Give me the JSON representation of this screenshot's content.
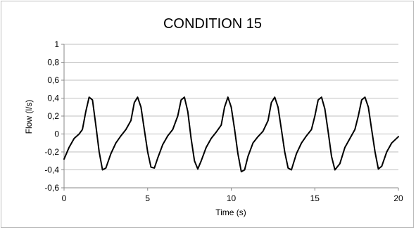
{
  "chart_data": {
    "type": "line",
    "title": "CONDITION 15",
    "xlabel": "Time (s)",
    "ylabel": "Flow (l/s)",
    "xlim": [
      0,
      20
    ],
    "ylim": [
      -0.6,
      1
    ],
    "x_ticks": [
      0,
      5,
      10,
      15,
      20
    ],
    "x_tick_labels": [
      "0",
      "5",
      "10",
      "15",
      "20"
    ],
    "y_ticks": [
      -0.6,
      -0.4,
      -0.2,
      0,
      0.2,
      0.4,
      0.6,
      0.8,
      1
    ],
    "y_tick_labels": [
      "-0,6",
      "-0,4",
      "-0,2",
      "0",
      "0,2",
      "0,4",
      "0,6",
      "0,8",
      "1"
    ],
    "grid": "horizontal",
    "colors": {
      "line": "#000000",
      "grid": "#bfbfbf",
      "axis": "#888888"
    },
    "series": [
      {
        "x": [
          0,
          0.3,
          0.6,
          0.9,
          1.1,
          1.3,
          1.5,
          1.7,
          1.9,
          2.1,
          2.3,
          2.5,
          2.8,
          3.1,
          3.4,
          3.7,
          4.0,
          4.2,
          4.4,
          4.6,
          4.8,
          5.0,
          5.2,
          5.4,
          5.6,
          5.9,
          6.2,
          6.5,
          6.8,
          7.0,
          7.2,
          7.4,
          7.6,
          7.8,
          8.0,
          8.2,
          8.5,
          8.8,
          9.1,
          9.4,
          9.6,
          9.8,
          10.0,
          10.2,
          10.4,
          10.6,
          10.8,
          11.0,
          11.3,
          11.6,
          11.9,
          12.2,
          12.4,
          12.6,
          12.8,
          13.0,
          13.2,
          13.4,
          13.6,
          13.9,
          14.2,
          14.5,
          14.8,
          15.0,
          15.2,
          15.4,
          15.6,
          15.8,
          16.0,
          16.2,
          16.5,
          16.8,
          17.1,
          17.4,
          17.6,
          17.8,
          18.0,
          18.2,
          18.4,
          18.6,
          18.8,
          19.0,
          19.3,
          19.6,
          20.0
        ],
        "y": [
          -0.28,
          -0.15,
          -0.05,
          0,
          0.05,
          0.25,
          0.41,
          0.38,
          0.1,
          -0.2,
          -0.4,
          -0.38,
          -0.22,
          -0.1,
          -0.02,
          0.05,
          0.15,
          0.35,
          0.41,
          0.3,
          0.05,
          -0.2,
          -0.37,
          -0.38,
          -0.27,
          -0.12,
          -0.02,
          0.05,
          0.2,
          0.38,
          0.41,
          0.25,
          -0.05,
          -0.3,
          -0.39,
          -0.3,
          -0.15,
          -0.05,
          0.02,
          0.1,
          0.3,
          0.41,
          0.3,
          0.05,
          -0.22,
          -0.42,
          -0.4,
          -0.25,
          -0.1,
          -0.03,
          0.03,
          0.15,
          0.35,
          0.41,
          0.3,
          0.05,
          -0.2,
          -0.38,
          -0.4,
          -0.22,
          -0.1,
          -0.02,
          0.05,
          0.2,
          0.38,
          0.41,
          0.28,
          0.02,
          -0.25,
          -0.4,
          -0.33,
          -0.15,
          -0.05,
          0.05,
          0.2,
          0.38,
          0.41,
          0.3,
          0.05,
          -0.2,
          -0.39,
          -0.36,
          -0.2,
          -0.1,
          -0.03
        ]
      }
    ]
  }
}
